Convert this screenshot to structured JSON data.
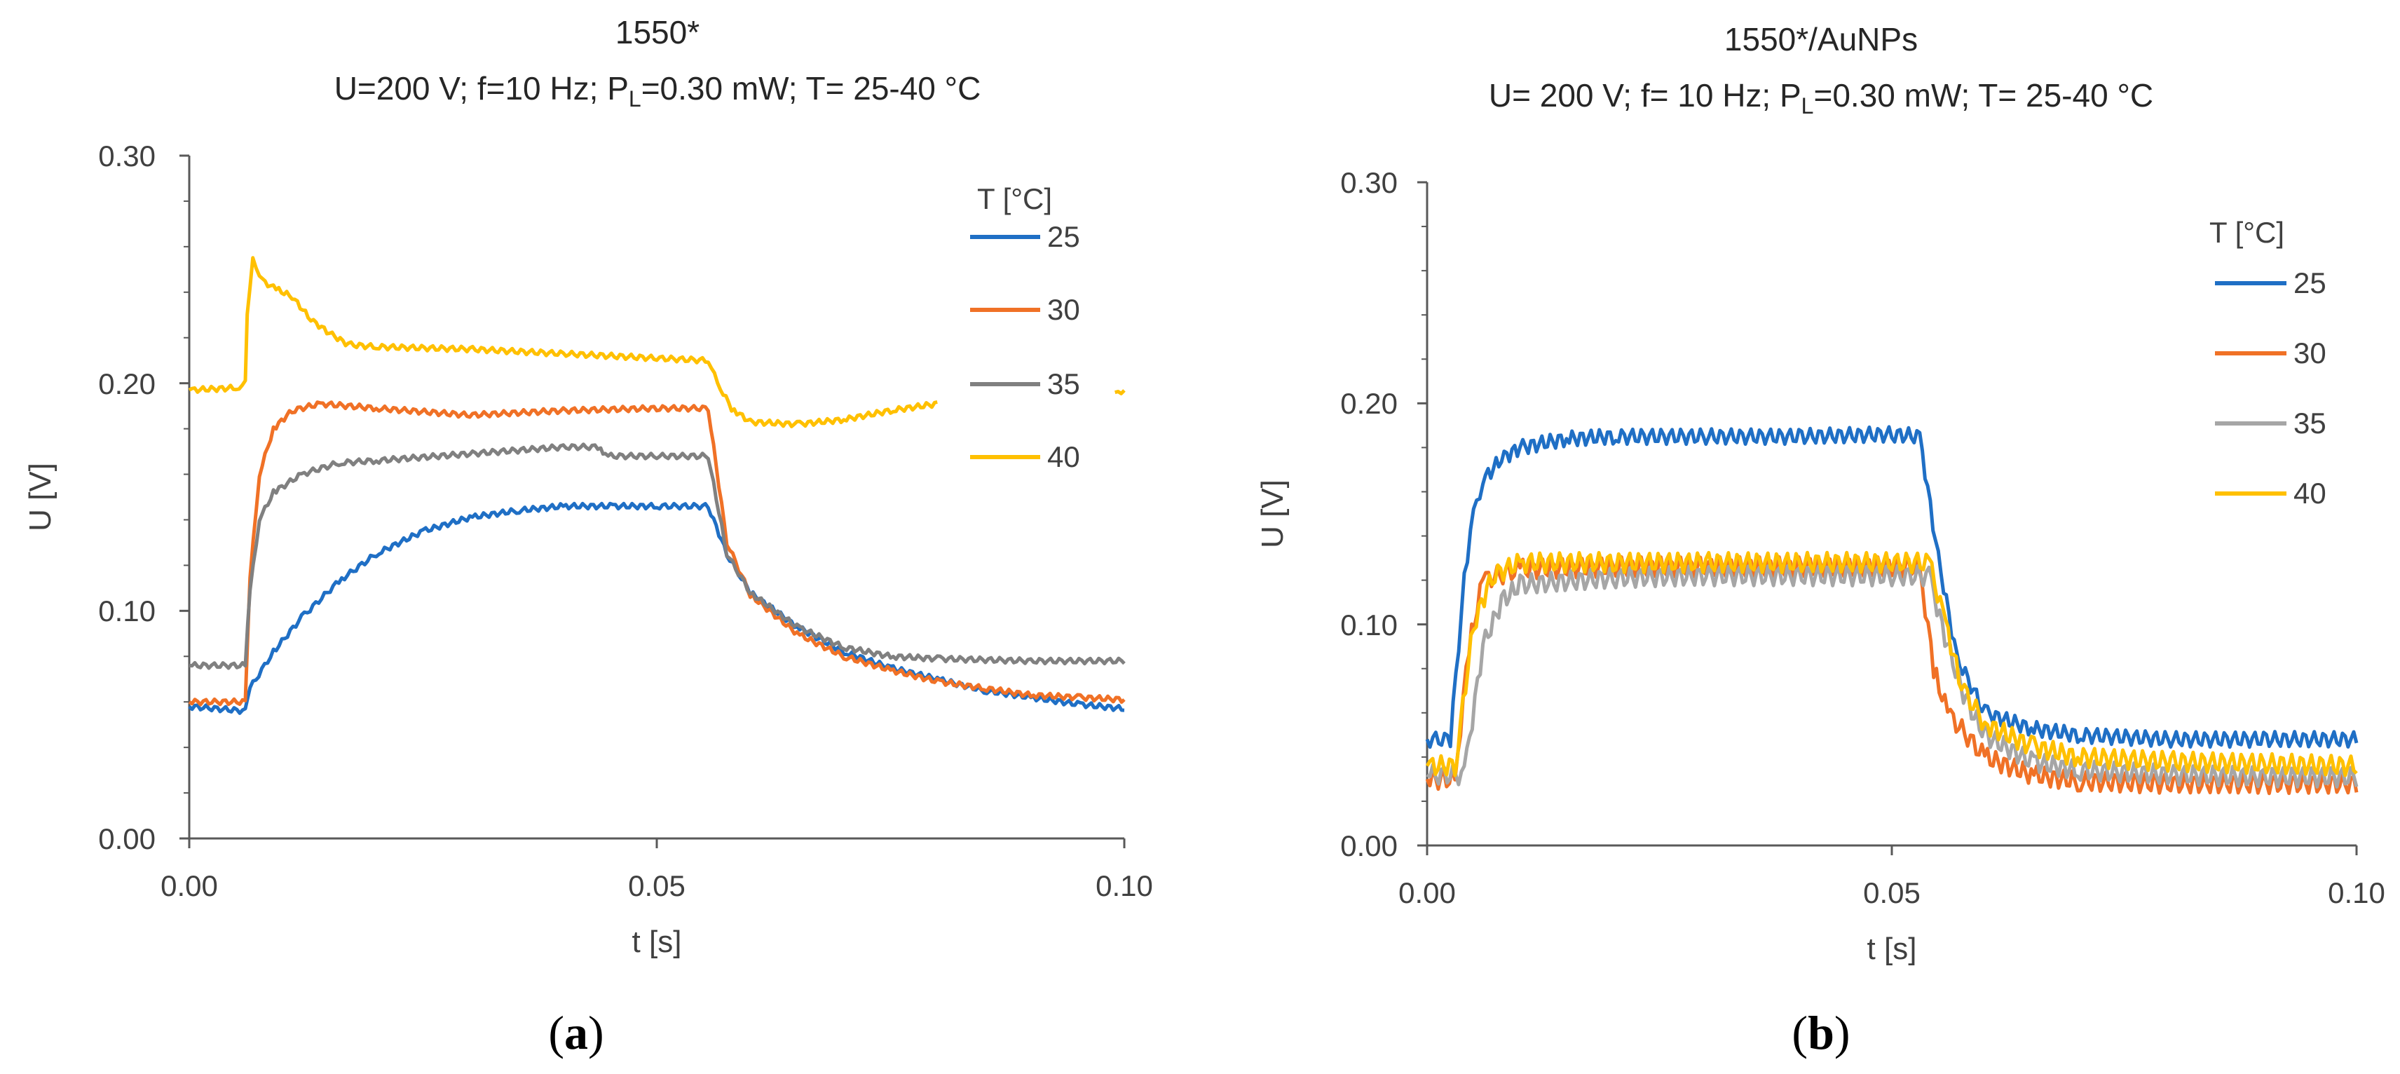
{
  "chart_data": [
    {
      "type": "line",
      "panel_label": "a",
      "title": "1550*",
      "subtitle": {
        "pre": "U=200 V; f=10 Hz; P",
        "sub": "L",
        "post": "=0.30 mW; T= 25-40 °C"
      },
      "xlabel": "t [s]",
      "ylabel": "U [V]",
      "xlim": [
        0,
        0.1
      ],
      "ylim": [
        0,
        0.3
      ],
      "x_ticks": [
        0.0,
        0.05,
        0.1
      ],
      "x_tick_labels": [
        "0.00",
        "0.05",
        "0.10"
      ],
      "y_ticks": [
        0.0,
        0.1,
        0.2,
        0.3
      ],
      "y_tick_labels": [
        "0.00",
        "0.10",
        "0.20",
        "0.30"
      ],
      "legend_title": "T [°C]",
      "legend_position": "top-right",
      "series": [
        {
          "name": "25",
          "color": "#1f6fc5",
          "values": [
            [
              0.0,
              0.058
            ],
            [
              0.006,
              0.056
            ],
            [
              0.0065,
              0.066
            ],
            [
              0.009,
              0.082
            ],
            [
              0.012,
              0.097
            ],
            [
              0.016,
              0.113
            ],
            [
              0.02,
              0.125
            ],
            [
              0.025,
              0.135
            ],
            [
              0.03,
              0.141
            ],
            [
              0.035,
              0.144
            ],
            [
              0.04,
              0.146
            ],
            [
              0.045,
              0.146
            ],
            [
              0.05,
              0.146
            ],
            [
              0.0555,
              0.146
            ],
            [
              0.0575,
              0.125
            ],
            [
              0.06,
              0.108
            ],
            [
              0.065,
              0.093
            ],
            [
              0.07,
              0.082
            ],
            [
              0.075,
              0.075
            ],
            [
              0.08,
              0.07
            ],
            [
              0.085,
              0.065
            ],
            [
              0.09,
              0.062
            ],
            [
              0.095,
              0.059
            ],
            [
              0.1,
              0.057
            ]
          ]
        },
        {
          "name": "30",
          "color": "#f07126",
          "values": [
            [
              0.0,
              0.06
            ],
            [
              0.006,
              0.06
            ],
            [
              0.0065,
              0.115
            ],
            [
              0.0075,
              0.16
            ],
            [
              0.009,
              0.18
            ],
            [
              0.011,
              0.188
            ],
            [
              0.014,
              0.191
            ],
            [
              0.02,
              0.189
            ],
            [
              0.03,
              0.186
            ],
            [
              0.04,
              0.188
            ],
            [
              0.05,
              0.189
            ],
            [
              0.0555,
              0.189
            ],
            [
              0.0575,
              0.13
            ],
            [
              0.06,
              0.107
            ],
            [
              0.065,
              0.09
            ],
            [
              0.07,
              0.08
            ],
            [
              0.075,
              0.074
            ],
            [
              0.08,
              0.069
            ],
            [
              0.085,
              0.066
            ],
            [
              0.09,
              0.063
            ],
            [
              0.095,
              0.062
            ],
            [
              0.1,
              0.061
            ]
          ]
        },
        {
          "name": "35",
          "color": "#808080",
          "values": [
            [
              0.0,
              0.076
            ],
            [
              0.006,
              0.076
            ],
            [
              0.0065,
              0.11
            ],
            [
              0.0075,
              0.14
            ],
            [
              0.009,
              0.152
            ],
            [
              0.012,
              0.16
            ],
            [
              0.016,
              0.165
            ],
            [
              0.02,
              0.166
            ],
            [
              0.03,
              0.169
            ],
            [
              0.04,
              0.172
            ],
            [
              0.044,
              0.172
            ],
            [
              0.0445,
              0.168
            ],
            [
              0.05,
              0.168
            ],
            [
              0.0555,
              0.168
            ],
            [
              0.0575,
              0.125
            ],
            [
              0.06,
              0.108
            ],
            [
              0.065,
              0.093
            ],
            [
              0.07,
              0.084
            ],
            [
              0.075,
              0.08
            ],
            [
              0.08,
              0.079
            ],
            [
              0.09,
              0.078
            ],
            [
              0.1,
              0.078
            ]
          ]
        },
        {
          "name": "40",
          "color": "#ffc000",
          "values": [
            [
              0.0,
              0.197
            ],
            [
              0.005,
              0.198
            ],
            [
              0.006,
              0.2
            ],
            [
              0.0062,
              0.23
            ],
            [
              0.0068,
              0.254
            ],
            [
              0.0075,
              0.246
            ],
            [
              0.009,
              0.242
            ],
            [
              0.011,
              0.238
            ],
            [
              0.013,
              0.228
            ],
            [
              0.015,
              0.222
            ],
            [
              0.017,
              0.217
            ],
            [
              0.02,
              0.216
            ],
            [
              0.03,
              0.215
            ],
            [
              0.04,
              0.213
            ],
            [
              0.05,
              0.211
            ],
            [
              0.0555,
              0.21
            ],
            [
              0.0565,
              0.2
            ],
            [
              0.058,
              0.189
            ],
            [
              0.06,
              0.183
            ],
            [
              0.065,
              0.182
            ],
            [
              0.07,
              0.184
            ],
            [
              0.075,
              0.188
            ],
            [
              0.08,
              0.191
            ],
            [
              null,
              null
            ],
            [
              0.099,
              0.196
            ],
            [
              0.1,
              0.197
            ]
          ]
        }
      ]
    },
    {
      "type": "line",
      "panel_label": "b",
      "title": "1550*/AuNPs",
      "subtitle": {
        "pre": "U= 200 V; f= 10 Hz; P",
        "sub": "L",
        "post": "=0.30 mW; T= 25-40 °C"
      },
      "xlabel": "t [s]",
      "ylabel": "U [V]",
      "xlim": [
        0,
        0.1
      ],
      "ylim": [
        0,
        0.3
      ],
      "x_ticks": [
        0.0,
        0.05,
        0.1
      ],
      "x_tick_labels": [
        "0.00",
        "0.05",
        "0.10"
      ],
      "y_ticks": [
        0.0,
        0.1,
        0.2,
        0.3
      ],
      "y_tick_labels": [
        "0.00",
        "0.10",
        "0.20",
        "0.30"
      ],
      "legend_title": "T [°C]",
      "legend_position": "top-right",
      "series": [
        {
          "name": "25",
          "color": "#1f6fc5",
          "values": [
            [
              0.0,
              0.048
            ],
            [
              0.0025,
              0.048
            ],
            [
              0.004,
              0.12
            ],
            [
              0.005,
              0.15
            ],
            [
              0.006,
              0.165
            ],
            [
              0.008,
              0.175
            ],
            [
              0.01,
              0.18
            ],
            [
              0.015,
              0.184
            ],
            [
              0.02,
              0.185
            ],
            [
              0.03,
              0.185
            ],
            [
              0.04,
              0.185
            ],
            [
              0.05,
              0.186
            ],
            [
              0.053,
              0.185
            ],
            [
              0.055,
              0.13
            ],
            [
              0.057,
              0.085
            ],
            [
              0.06,
              0.06
            ],
            [
              0.065,
              0.053
            ],
            [
              0.07,
              0.05
            ],
            [
              0.08,
              0.048
            ],
            [
              0.09,
              0.048
            ],
            [
              0.1,
              0.048
            ]
          ]
        },
        {
          "name": "30",
          "color": "#f07126",
          "values": [
            [
              0.0,
              0.03
            ],
            [
              0.003,
              0.03
            ],
            [
              0.0045,
              0.09
            ],
            [
              0.006,
              0.12
            ],
            [
              0.01,
              0.125
            ],
            [
              0.02,
              0.126
            ],
            [
              0.03,
              0.126
            ],
            [
              0.04,
              0.126
            ],
            [
              0.05,
              0.126
            ],
            [
              0.053,
              0.126
            ],
            [
              0.0545,
              0.08
            ],
            [
              0.056,
              0.06
            ],
            [
              0.06,
              0.04
            ],
            [
              0.065,
              0.032
            ],
            [
              0.07,
              0.029
            ],
            [
              0.08,
              0.028
            ],
            [
              0.09,
              0.028
            ],
            [
              0.1,
              0.028
            ]
          ]
        },
        {
          "name": "35",
          "color": "#a6a6a6",
          "values": [
            [
              0.0,
              0.032
            ],
            [
              0.004,
              0.032
            ],
            [
              0.006,
              0.09
            ],
            [
              0.008,
              0.11
            ],
            [
              0.01,
              0.118
            ],
            [
              0.02,
              0.121
            ],
            [
              0.03,
              0.122
            ],
            [
              0.04,
              0.122
            ],
            [
              0.05,
              0.122
            ],
            [
              0.054,
              0.122
            ],
            [
              0.056,
              0.09
            ],
            [
              0.058,
              0.065
            ],
            [
              0.06,
              0.05
            ],
            [
              0.065,
              0.038
            ],
            [
              0.07,
              0.034
            ],
            [
              0.08,
              0.032
            ],
            [
              0.09,
              0.031
            ],
            [
              0.1,
              0.031
            ]
          ]
        },
        {
          "name": "40",
          "color": "#ffc000",
          "values": [
            [
              0.0,
              0.036
            ],
            [
              0.003,
              0.036
            ],
            [
              0.005,
              0.1
            ],
            [
              0.007,
              0.122
            ],
            [
              0.01,
              0.128
            ],
            [
              0.02,
              0.128
            ],
            [
              0.03,
              0.128
            ],
            [
              0.04,
              0.128
            ],
            [
              0.05,
              0.128
            ],
            [
              0.054,
              0.128
            ],
            [
              0.0555,
              0.105
            ],
            [
              0.0575,
              0.072
            ],
            [
              0.06,
              0.055
            ],
            [
              0.065,
              0.045
            ],
            [
              0.07,
              0.04
            ],
            [
              0.08,
              0.038
            ],
            [
              0.09,
              0.037
            ],
            [
              0.1,
              0.036
            ]
          ]
        }
      ]
    }
  ]
}
